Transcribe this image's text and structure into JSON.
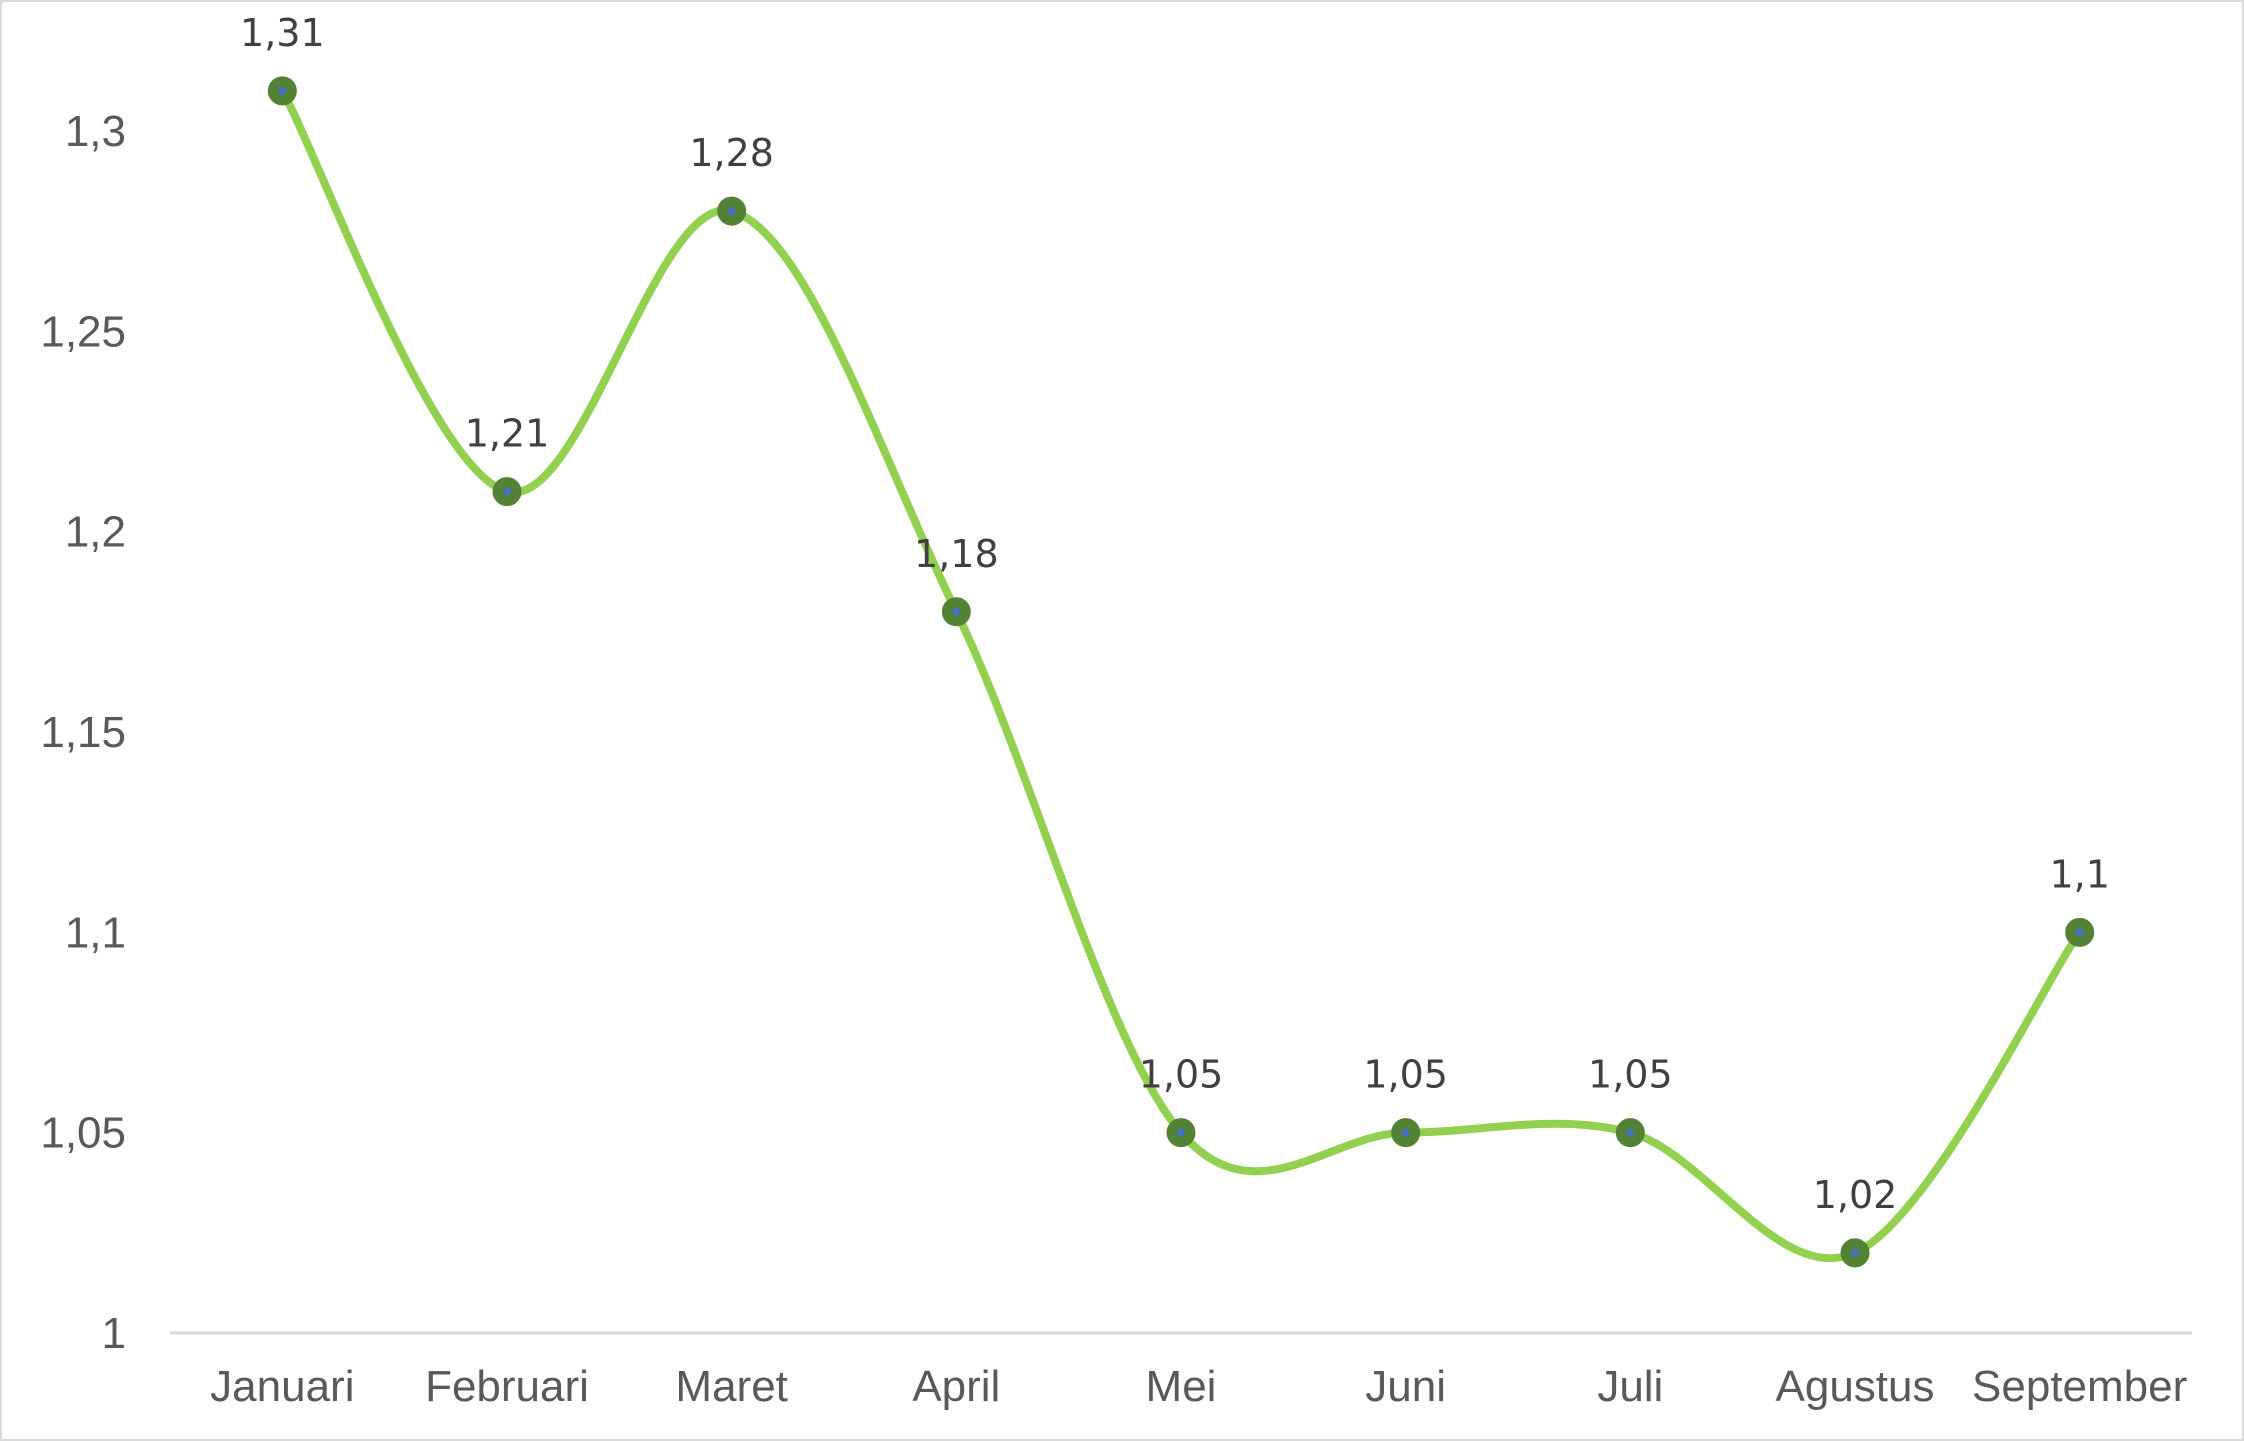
{
  "chart_data": {
    "type": "line",
    "title": "",
    "xlabel": "",
    "ylabel": "",
    "categories": [
      "Januari",
      "Februari",
      "Maret",
      "April",
      "Mei",
      "Juni",
      "Juli",
      "Agustus",
      "September"
    ],
    "series": [
      {
        "values": [
          1.31,
          1.21,
          1.28,
          1.18,
          1.05,
          1.05,
          1.05,
          1.02,
          1.1
        ],
        "labels": [
          "1,31",
          "1,21",
          "1,28",
          "1,18",
          "1,05",
          "1,05",
          "1,05",
          "1,02",
          "1,1"
        ],
        "line_color": "#92d050",
        "marker_color": "#548235",
        "marker_center_color": "#4472c4",
        "smooth": true
      }
    ],
    "ylim": [
      1,
      1.3
    ],
    "yticks": [
      1,
      1.05,
      1.1,
      1.15,
      1.2,
      1.25,
      1.3
    ],
    "ytick_labels": [
      "1",
      "1,05",
      "1,1",
      "1,15",
      "1,2",
      "1,25",
      "1,3"
    ],
    "grid": false,
    "legend": "none",
    "axis_color": "#d9d9d9"
  }
}
